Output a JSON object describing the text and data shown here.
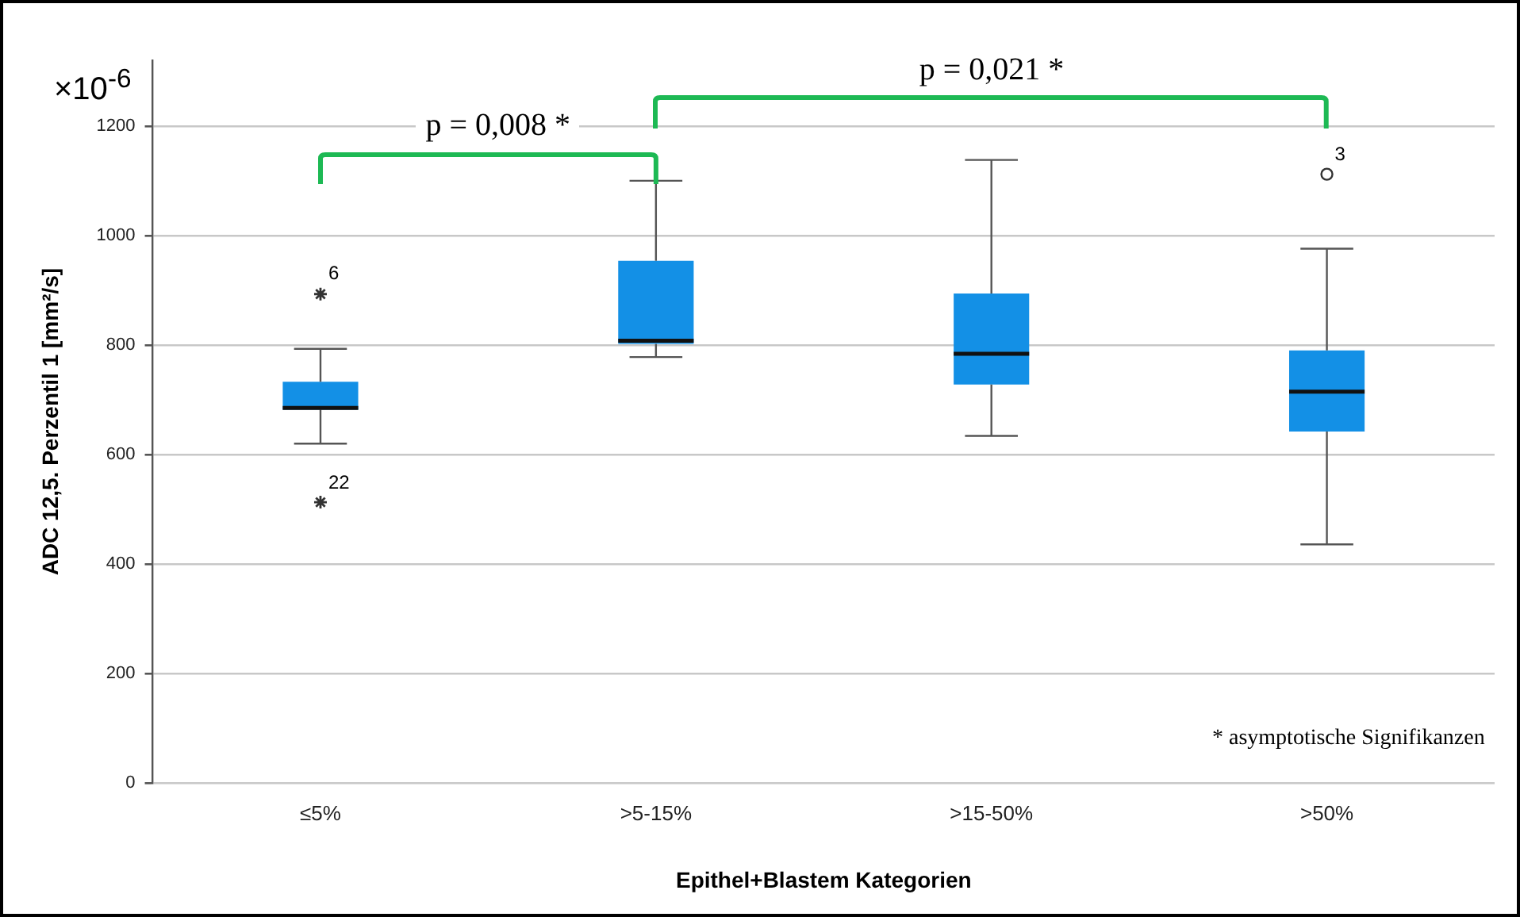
{
  "chart_data": {
    "type": "box",
    "xlabel": "Epithel+Blastem Kategorien",
    "ylabel": "ADC 12,5. Perzentil 1 [mm²/s]",
    "categories": [
      "≤5%",
      ">5-15%",
      ">15-50%",
      ">50%"
    ],
    "ylim": [
      0,
      1320
    ],
    "yticks": [
      0,
      200,
      400,
      600,
      800,
      1000,
      1200
    ],
    "grid": "y",
    "legend": false,
    "series": [
      {
        "type": "box",
        "color": "#1390e6",
        "boxes": [
          {
            "low": 620,
            "q1": 682,
            "median": 685,
            "q3": 733,
            "high": 793
          },
          {
            "low": 778,
            "q1": 802,
            "median": 808,
            "q3": 954,
            "high": 1100
          },
          {
            "low": 634,
            "q1": 728,
            "median": 784,
            "q3": 894,
            "high": 1138
          },
          {
            "low": 436,
            "q1": 642,
            "median": 715,
            "q3": 790,
            "high": 976
          }
        ]
      },
      {
        "type": "scatter",
        "x": [
          "≤5%",
          "≤5%"
        ],
        "values": [
          893,
          513
        ],
        "marker": "cross",
        "color": "#333333"
      },
      {
        "type": "scatter",
        "x": [
          ">50%"
        ],
        "values": [
          1112
        ],
        "marker": "circle",
        "color": "#333333"
      }
    ],
    "annotations": [
      "×10$^{-6}$",
      "p = 0,008 *",
      "p = 0,021 *",
      "* asymptotische Signifikanzen",
      {
        "text": "6",
        "x": "≤5%",
        "y": 893
      },
      {
        "text": "22",
        "x": "≤5%",
        "y": 513
      },
      {
        "text": "3",
        "x": ">50%",
        "y": 1112
      }
    ]
  }
}
